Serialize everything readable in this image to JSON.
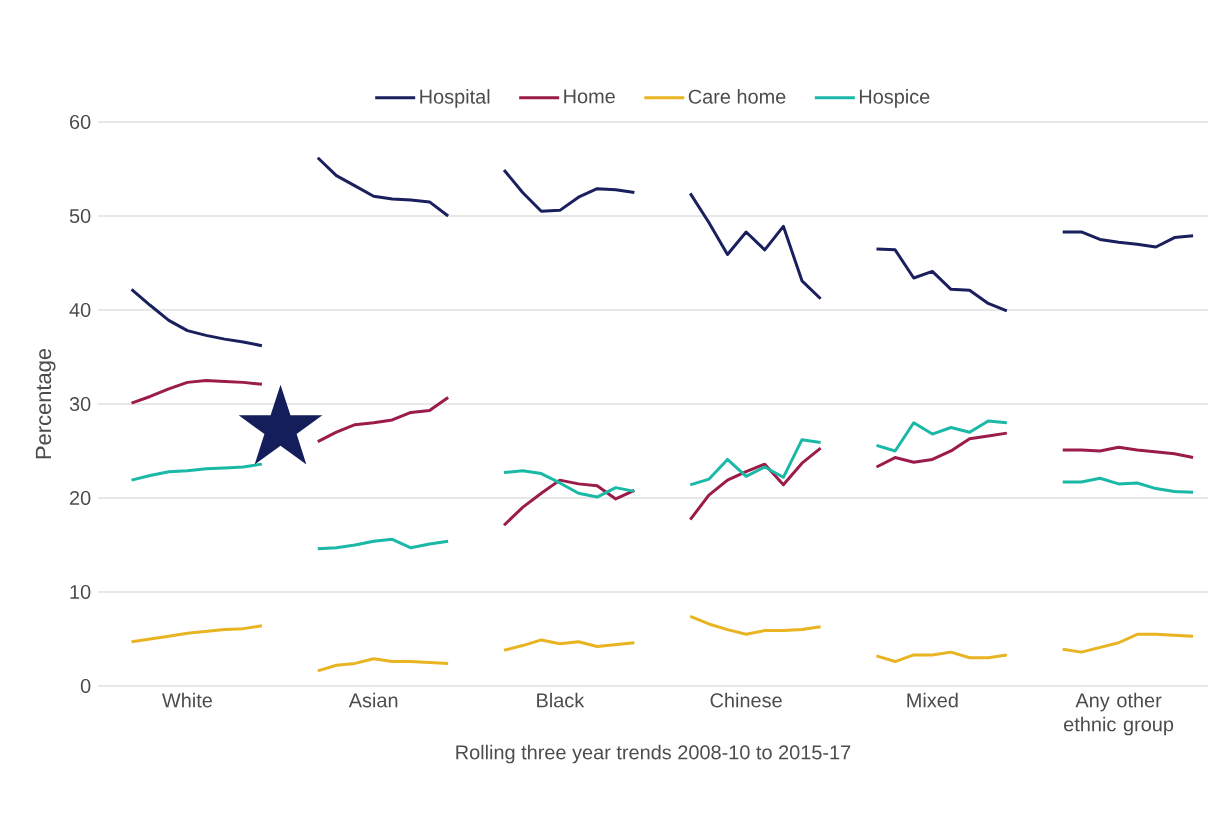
{
  "chart_data": {
    "type": "line",
    "xlabel": "Rolling three year trends 2008-10 to 2015-17",
    "ylabel": "Percentage",
    "categories": [
      null,
      null,
      null,
      "White",
      null,
      null,
      null,
      null,
      null,
      null,
      null,
      null,
      null,
      "Asian",
      null,
      null,
      null,
      null,
      null,
      null,
      null,
      null,
      null,
      "Black",
      null,
      null,
      null,
      null,
      null,
      null,
      null,
      null,
      null,
      "Chinese",
      null,
      null,
      null,
      null,
      null,
      null,
      null,
      null,
      null,
      "Mixed",
      null,
      null,
      null,
      null,
      null,
      null,
      null,
      null,
      null,
      "Any other ethnic group",
      null,
      null,
      null,
      null
    ],
    "ylim": [
      0,
      60
    ],
    "yticks": [
      0,
      10,
      20,
      30,
      40,
      50,
      60
    ],
    "grid": "y",
    "legend": "top",
    "marker": "none",
    "line_style": "solid",
    "series": [
      {
        "name": "Hospital",
        "color": "#1a1f5e",
        "values": [
          42.2,
          40.5,
          38.9,
          37.8,
          37.3,
          36.9,
          36.6,
          36.2,
          null,
          null,
          56.2,
          54.3,
          53.2,
          52.1,
          51.8,
          51.7,
          51.5,
          50.0,
          null,
          null,
          54.9,
          52.5,
          50.5,
          50.6,
          52.0,
          52.9,
          52.8,
          52.5,
          null,
          null,
          52.4,
          49.3,
          45.9,
          48.3,
          46.4,
          48.9,
          43.1,
          41.2,
          null,
          null,
          46.5,
          46.4,
          43.4,
          44.1,
          42.2,
          42.1,
          40.7,
          39.9,
          null,
          null,
          48.3,
          48.3,
          47.5,
          47.2,
          47.0,
          46.7,
          47.7,
          47.9
        ]
      },
      {
        "name": "Home",
        "color": "#9b1b4a",
        "values": [
          30.1,
          30.8,
          31.6,
          32.3,
          32.5,
          32.4,
          32.3,
          32.1,
          null,
          null,
          26.0,
          27.0,
          27.8,
          28.0,
          28.3,
          29.1,
          29.3,
          30.7,
          null,
          null,
          17.1,
          19.0,
          20.5,
          21.9,
          21.5,
          21.3,
          19.9,
          20.8,
          null,
          null,
          17.7,
          20.3,
          21.9,
          22.8,
          23.6,
          21.4,
          23.7,
          25.3,
          null,
          null,
          23.3,
          24.3,
          23.8,
          24.1,
          25.0,
          26.3,
          26.6,
          26.9,
          null,
          null,
          25.1,
          25.1,
          25.0,
          25.4,
          25.1,
          24.9,
          24.7,
          24.3
        ]
      },
      {
        "name": "Care home",
        "color": "#e8b422",
        "values": [
          4.7,
          5.0,
          5.3,
          5.6,
          5.8,
          6.0,
          6.1,
          6.4,
          null,
          null,
          1.6,
          2.2,
          2.4,
          2.9,
          2.6,
          2.6,
          2.5,
          2.4,
          null,
          null,
          3.8,
          4.3,
          4.9,
          4.5,
          4.7,
          4.2,
          4.4,
          4.6,
          null,
          null,
          7.4,
          6.6,
          6.0,
          5.5,
          5.9,
          5.9,
          6.0,
          6.3,
          null,
          null,
          3.2,
          2.6,
          3.3,
          3.3,
          3.6,
          3.0,
          3.0,
          3.3,
          null,
          null,
          3.9,
          3.6,
          4.1,
          4.6,
          5.5,
          5.5,
          5.4,
          5.3
        ]
      },
      {
        "name": "Hospice",
        "color": "#1ab8a6",
        "values": [
          21.9,
          22.4,
          22.8,
          22.9,
          23.1,
          23.2,
          23.3,
          23.6,
          null,
          null,
          14.6,
          14.7,
          15.0,
          15.4,
          15.6,
          14.7,
          15.1,
          15.4,
          null,
          null,
          22.7,
          22.9,
          22.6,
          21.6,
          20.5,
          20.1,
          21.1,
          20.7,
          null,
          null,
          21.4,
          22.0,
          24.1,
          22.3,
          23.3,
          22.2,
          26.2,
          25.9,
          null,
          null,
          25.6,
          25.0,
          28.0,
          26.8,
          27.5,
          27.0,
          28.2,
          28.0,
          null,
          null,
          21.7,
          21.7,
          22.1,
          21.5,
          21.6,
          21.0,
          20.7,
          20.6
        ]
      }
    ]
  }
}
